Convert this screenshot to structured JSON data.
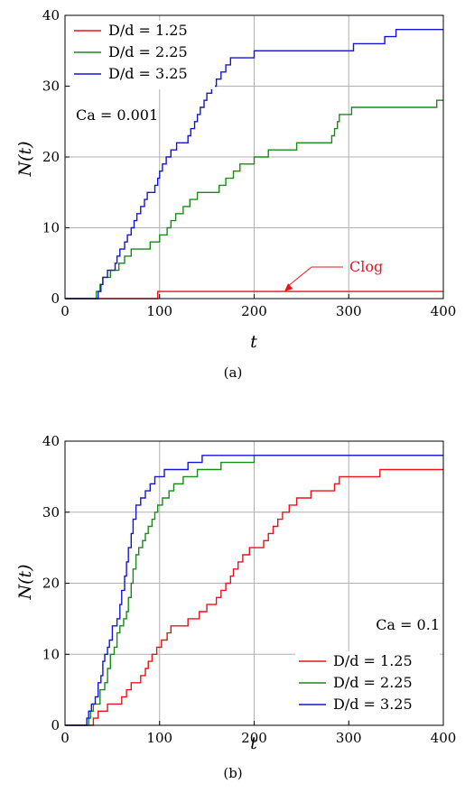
{
  "chart_data": [
    {
      "type": "line",
      "caption": "(a)",
      "xlabel": "t",
      "ylabel": "N(t)",
      "xlim": [
        0,
        400
      ],
      "ylim": [
        0,
        40
      ],
      "xticks": [
        "0",
        "100",
        "200",
        "300",
        "400"
      ],
      "yticks": [
        "0",
        "10",
        "20",
        "30",
        "40"
      ],
      "grid": true,
      "legend_position": "top-left",
      "annotation_text": "Ca = 0.001",
      "clog_label": "Clog",
      "clog_point": [
        232,
        1
      ],
      "series": [
        {
          "name": "D/d = 1.25",
          "color": "#e8141a",
          "steps": [
            [
              0,
              0
            ],
            [
              98,
              1
            ],
            [
              400,
              1
            ]
          ]
        },
        {
          "name": "D/d = 2.25",
          "color": "#1a8a1a",
          "steps": [
            [
              0,
              0
            ],
            [
              30,
              0
            ],
            [
              33,
              1
            ],
            [
              37,
              2
            ],
            [
              40,
              3
            ],
            [
              48,
              4
            ],
            [
              57,
              5
            ],
            [
              63,
              6
            ],
            [
              70,
              7
            ],
            [
              90,
              8
            ],
            [
              100,
              9
            ],
            [
              108,
              10
            ],
            [
              112,
              11
            ],
            [
              117,
              12
            ],
            [
              125,
              13
            ],
            [
              132,
              14
            ],
            [
              140,
              15
            ],
            [
              163,
              16
            ],
            [
              170,
              17
            ],
            [
              178,
              18
            ],
            [
              185,
              19
            ],
            [
              200,
              20
            ],
            [
              215,
              21
            ],
            [
              245,
              22
            ],
            [
              282,
              23
            ],
            [
              285,
              24
            ],
            [
              288,
              25
            ],
            [
              290,
              26
            ],
            [
              303,
              27
            ],
            [
              393,
              28
            ],
            [
              400,
              28
            ]
          ]
        },
        {
          "name": "D/d = 3.25",
          "color": "#1414d2",
          "steps": [
            [
              0,
              0
            ],
            [
              30,
              0
            ],
            [
              35,
              1
            ],
            [
              38,
              2
            ],
            [
              40,
              3
            ],
            [
              45,
              4
            ],
            [
              53,
              5
            ],
            [
              55,
              6
            ],
            [
              58,
              7
            ],
            [
              63,
              8
            ],
            [
              66,
              9
            ],
            [
              70,
              10
            ],
            [
              73,
              11
            ],
            [
              76,
              12
            ],
            [
              80,
              13
            ],
            [
              84,
              14
            ],
            [
              87,
              15
            ],
            [
              95,
              16
            ],
            [
              98,
              17
            ],
            [
              100,
              18
            ],
            [
              103,
              19
            ],
            [
              107,
              20
            ],
            [
              112,
              21
            ],
            [
              118,
              22
            ],
            [
              130,
              23
            ],
            [
              133,
              24
            ],
            [
              137,
              25
            ],
            [
              140,
              26
            ],
            [
              143,
              27
            ],
            [
              147,
              28
            ],
            [
              150,
              29
            ],
            [
              155,
              30
            ],
            [
              160,
              31
            ],
            [
              165,
              32
            ],
            [
              170,
              33
            ],
            [
              175,
              34
            ],
            [
              200,
              35
            ],
            [
              305,
              36
            ],
            [
              338,
              37
            ],
            [
              350,
              38
            ],
            [
              400,
              38
            ]
          ]
        }
      ]
    },
    {
      "type": "line",
      "caption": "(b)",
      "xlabel": "t",
      "ylabel": "N(t)",
      "xlim": [
        0,
        400
      ],
      "ylim": [
        0,
        40
      ],
      "xticks": [
        "0",
        "100",
        "200",
        "300",
        "400"
      ],
      "yticks": [
        "0",
        "10",
        "20",
        "30",
        "40"
      ],
      "grid": true,
      "legend_position": "bottom-right",
      "annotation_text": "Ca = 0.1",
      "series": [
        {
          "name": "D/d = 1.25",
          "color": "#e8141a",
          "steps": [
            [
              0,
              0
            ],
            [
              27,
              0
            ],
            [
              30,
              1
            ],
            [
              35,
              2
            ],
            [
              45,
              3
            ],
            [
              60,
              4
            ],
            [
              65,
              5
            ],
            [
              70,
              6
            ],
            [
              80,
              7
            ],
            [
              85,
              8
            ],
            [
              88,
              9
            ],
            [
              92,
              10
            ],
            [
              97,
              11
            ],
            [
              102,
              12
            ],
            [
              108,
              13
            ],
            [
              112,
              14
            ],
            [
              130,
              15
            ],
            [
              142,
              16
            ],
            [
              150,
              17
            ],
            [
              160,
              18
            ],
            [
              165,
              19
            ],
            [
              170,
              20
            ],
            [
              175,
              21
            ],
            [
              178,
              22
            ],
            [
              183,
              23
            ],
            [
              188,
              24
            ],
            [
              195,
              25
            ],
            [
              210,
              26
            ],
            [
              215,
              27
            ],
            [
              220,
              28
            ],
            [
              225,
              29
            ],
            [
              230,
              30
            ],
            [
              237,
              31
            ],
            [
              245,
              32
            ],
            [
              260,
              33
            ],
            [
              285,
              34
            ],
            [
              290,
              35
            ],
            [
              333,
              36
            ],
            [
              400,
              36
            ]
          ]
        },
        {
          "name": "D/d = 2.25",
          "color": "#1a8a1a",
          "steps": [
            [
              0,
              0
            ],
            [
              22,
              0
            ],
            [
              25,
              1
            ],
            [
              27,
              2
            ],
            [
              30,
              3
            ],
            [
              37,
              5
            ],
            [
              42,
              6
            ],
            [
              45,
              8
            ],
            [
              48,
              10
            ],
            [
              52,
              11
            ],
            [
              55,
              13
            ],
            [
              58,
              14
            ],
            [
              62,
              15
            ],
            [
              65,
              16
            ],
            [
              67,
              18
            ],
            [
              70,
              20
            ],
            [
              72,
              22
            ],
            [
              75,
              24
            ],
            [
              78,
              25
            ],
            [
              82,
              26
            ],
            [
              85,
              27
            ],
            [
              88,
              28
            ],
            [
              92,
              29
            ],
            [
              95,
              30
            ],
            [
              98,
              31
            ],
            [
              103,
              32
            ],
            [
              110,
              33
            ],
            [
              115,
              34
            ],
            [
              125,
              35
            ],
            [
              140,
              36
            ],
            [
              165,
              37
            ],
            [
              200,
              38
            ],
            [
              400,
              38
            ]
          ]
        },
        {
          "name": "D/d = 3.25",
          "color": "#1414d2",
          "steps": [
            [
              0,
              0
            ],
            [
              20,
              0
            ],
            [
              23,
              1
            ],
            [
              25,
              2
            ],
            [
              28,
              3
            ],
            [
              32,
              4
            ],
            [
              35,
              6
            ],
            [
              38,
              7
            ],
            [
              40,
              9
            ],
            [
              42,
              10
            ],
            [
              45,
              11
            ],
            [
              47,
              12
            ],
            [
              50,
              14
            ],
            [
              55,
              15
            ],
            [
              58,
              17
            ],
            [
              60,
              19
            ],
            [
              63,
              21
            ],
            [
              65,
              23
            ],
            [
              67,
              25
            ],
            [
              70,
              27
            ],
            [
              72,
              29
            ],
            [
              75,
              31
            ],
            [
              80,
              32
            ],
            [
              85,
              33
            ],
            [
              90,
              34
            ],
            [
              95,
              35
            ],
            [
              105,
              36
            ],
            [
              130,
              37
            ],
            [
              145,
              38
            ],
            [
              400,
              38
            ]
          ]
        }
      ]
    }
  ]
}
